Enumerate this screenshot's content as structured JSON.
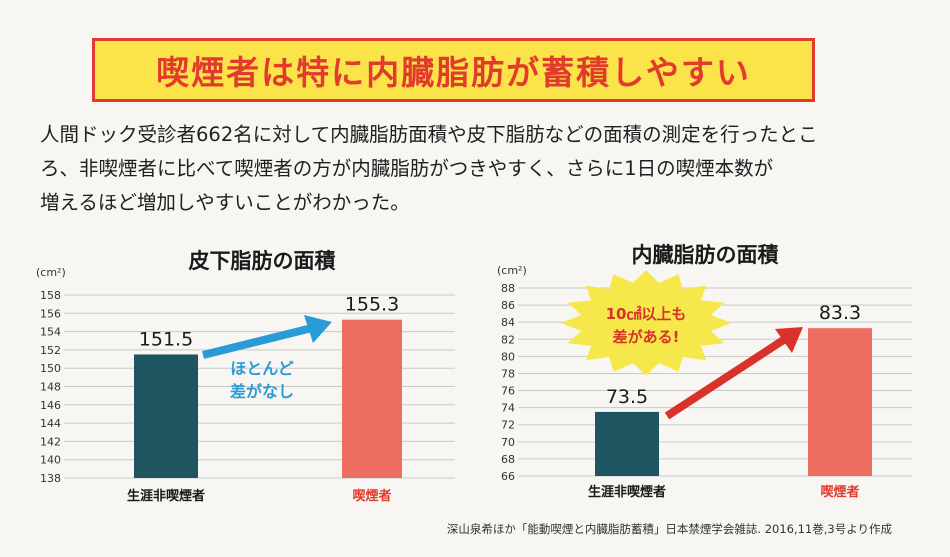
{
  "headline": "喫煙者は特に内臓脂肪が蓄積しやすい",
  "intro_lines": [
    "人間ドック受診者662名に対して内臓脂肪面積や皮下脂肪などの面積の測定を行ったとこ",
    "ろ、非喫煙者に比べて喫煙者の方が内臓脂肪がつきやすく、さらに1日の喫煙本数が",
    "増えるほど増加しやすいことがわかった。"
  ],
  "chart_data": [
    {
      "type": "bar",
      "title": "皮下脂肪の面積",
      "unit_label": "(cm²)",
      "categories": [
        "生涯非喫煙者",
        "喫煙者"
      ],
      "values": [
        151.5,
        155.3
      ],
      "value_labels": [
        "151.5",
        "155.3"
      ],
      "ylim": [
        138,
        158
      ],
      "yticks": [
        138,
        140,
        142,
        144,
        146,
        148,
        150,
        152,
        154,
        156,
        158
      ],
      "grid": true,
      "bar_colors": [
        "#1f5560",
        "#ee6d61"
      ],
      "annotation": [
        "ほとんど",
        "差がなし"
      ],
      "annotation_color": "#2a9bd6"
    },
    {
      "type": "bar",
      "title": "内臓脂肪の面積",
      "unit_label": "(cm²)",
      "categories": [
        "生涯非喫煙者",
        "喫煙者"
      ],
      "values": [
        73.5,
        83.3
      ],
      "value_labels": [
        "73.5",
        "83.3"
      ],
      "ylim": [
        66,
        88
      ],
      "yticks": [
        66,
        68,
        70,
        72,
        74,
        76,
        78,
        80,
        82,
        84,
        86,
        88
      ],
      "grid": true,
      "bar_colors": [
        "#1f5560",
        "#ee6d61"
      ],
      "annotation": [
        "10㎠以上も",
        "差がある!"
      ],
      "annotation_color": "#d8322a"
    }
  ],
  "source": "深山泉希ほか「能動喫煙と内臓脂肪蓄積」日本禁煙学会雑誌. 2016,11巻,3号より作成",
  "colors": {
    "title_bg": "#fbe44a",
    "title_border": "#e23b2e",
    "title_text": "#e23b2e",
    "nonsmoker_bar": "#1f5560",
    "smoker_bar": "#ee6d61",
    "smoker_label": "#e23b2e",
    "arrow_left": "#2a9bd6",
    "arrow_right": "#d8322a",
    "burst": "#f6e84a"
  }
}
